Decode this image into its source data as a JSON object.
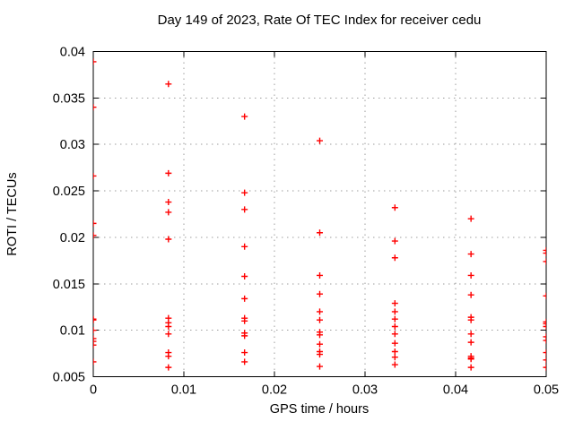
{
  "chart_data": {
    "type": "scatter",
    "title": "Day 149 of 2023, Rate Of TEC Index for receiver cedu",
    "xlabel": "GPS time / hours",
    "ylabel": "ROTI / TECUs",
    "xlim": [
      0,
      0.05
    ],
    "ylim": [
      0.005,
      0.04
    ],
    "xticks": {
      "values": [
        0,
        0.01,
        0.02,
        0.03,
        0.04,
        0.05
      ],
      "labels": [
        "0",
        "0.01",
        "0.02",
        "0.03",
        "0.04",
        "0.05"
      ]
    },
    "yticks": {
      "values": [
        0.005,
        0.01,
        0.015,
        0.02,
        0.025,
        0.03,
        0.035,
        0.04
      ],
      "labels": [
        "0.005",
        "0.01",
        "0.015",
        "0.02",
        "0.025",
        "0.03",
        "0.035",
        "0.04"
      ]
    },
    "grid": true,
    "legend_position": "none",
    "marker": {
      "shape": "plus",
      "color": "#ff0000",
      "size": 7
    },
    "grid_color": "#9e9e9e",
    "axis_color": "#000000",
    "background_color": "#ffffff",
    "series": [
      {
        "name": "ROTI",
        "columns": [
          {
            "x": 0.0,
            "y": [
              0.0389,
              0.034,
              0.0266,
              0.0215,
              0.0202,
              0.0112,
              0.0111,
              0.01,
              0.0091,
              0.0088,
              0.0084,
              0.0066
            ]
          },
          {
            "x": 0.0083,
            "y": [
              0.0365,
              0.0269,
              0.0238,
              0.0227,
              0.0198,
              0.0113,
              0.0108,
              0.0104,
              0.0096,
              0.0076,
              0.0072,
              0.006
            ]
          },
          {
            "x": 0.0167,
            "y": [
              0.033,
              0.0248,
              0.023,
              0.019,
              0.0158,
              0.0134,
              0.0113,
              0.011,
              0.0097,
              0.0094,
              0.0076,
              0.0066
            ]
          },
          {
            "x": 0.025,
            "y": [
              0.0304,
              0.0205,
              0.0159,
              0.0139,
              0.012,
              0.0111,
              0.0098,
              0.0095,
              0.0085,
              0.0077,
              0.0074,
              0.0061
            ]
          },
          {
            "x": 0.0333,
            "y": [
              0.0232,
              0.0196,
              0.0178,
              0.0129,
              0.012,
              0.0112,
              0.0104,
              0.0096,
              0.0086,
              0.0077,
              0.0071,
              0.0063
            ]
          },
          {
            "x": 0.0417,
            "y": [
              0.022,
              0.0182,
              0.0159,
              0.0138,
              0.0114,
              0.0111,
              0.0096,
              0.0087,
              0.0072,
              0.007,
              0.0069,
              0.006
            ]
          },
          {
            "x": 0.05,
            "y": [
              0.0186,
              0.0183,
              0.0174,
              0.0137,
              0.0109,
              0.0107,
              0.0104,
              0.0093,
              0.0089,
              0.0076,
              0.0068,
              0.006
            ]
          }
        ]
      }
    ]
  }
}
